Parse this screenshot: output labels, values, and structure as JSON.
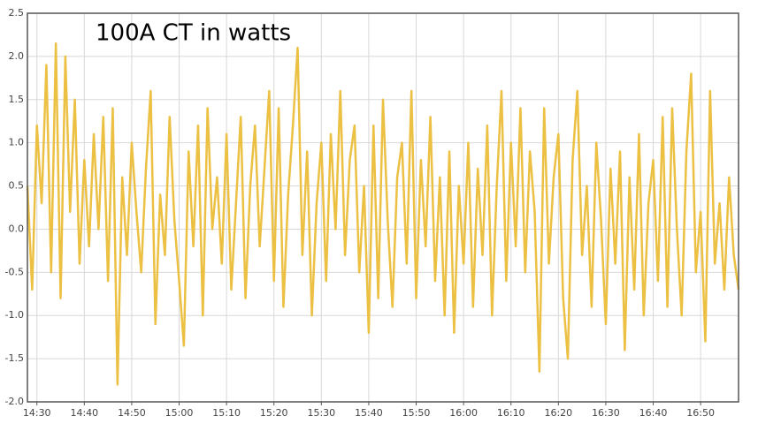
{
  "chart_data": {
    "type": "line",
    "annotation": "100A CT in watts",
    "x": [
      "14:28",
      "14:29",
      "14:30",
      "14:31",
      "14:32",
      "14:33",
      "14:34",
      "14:35",
      "14:36",
      "14:37",
      "14:38",
      "14:39",
      "14:40",
      "14:41",
      "14:42",
      "14:43",
      "14:44",
      "14:45",
      "14:46",
      "14:47",
      "14:48",
      "14:49",
      "14:50",
      "14:51",
      "14:52",
      "14:53",
      "14:54",
      "14:55",
      "14:56",
      "14:57",
      "14:58",
      "14:59",
      "15:00",
      "15:01",
      "15:02",
      "15:03",
      "15:04",
      "15:05",
      "15:06",
      "15:07",
      "15:08",
      "15:09",
      "15:10",
      "15:11",
      "15:12",
      "15:13",
      "15:14",
      "15:15",
      "15:16",
      "15:17",
      "15:18",
      "15:19",
      "15:20",
      "15:21",
      "15:22",
      "15:23",
      "15:24",
      "15:25",
      "15:26",
      "15:27",
      "15:28",
      "15:29",
      "15:30",
      "15:31",
      "15:32",
      "15:33",
      "15:34",
      "15:35",
      "15:36",
      "15:37",
      "15:38",
      "15:39",
      "15:40",
      "15:41",
      "15:42",
      "15:43",
      "15:44",
      "15:45",
      "15:46",
      "15:47",
      "15:48",
      "15:49",
      "15:50",
      "15:51",
      "15:52",
      "15:53",
      "15:54",
      "15:55",
      "15:56",
      "15:57",
      "15:58",
      "15:59",
      "16:00",
      "16:01",
      "16:02",
      "16:03",
      "16:04",
      "16:05",
      "16:06",
      "16:07",
      "16:08",
      "16:09",
      "16:10",
      "16:11",
      "16:12",
      "16:13",
      "16:14",
      "16:15",
      "16:16",
      "16:17",
      "16:18",
      "16:19",
      "16:20",
      "16:21",
      "16:22",
      "16:23",
      "16:24",
      "16:25",
      "16:26",
      "16:27",
      "16:28",
      "16:29",
      "16:30",
      "16:31",
      "16:32",
      "16:33",
      "16:34",
      "16:35",
      "16:36",
      "16:37",
      "16:38",
      "16:39",
      "16:40",
      "16:41",
      "16:42",
      "16:43",
      "16:44",
      "16:45",
      "16:46",
      "16:47",
      "16:48",
      "16:49",
      "16:50",
      "16:51",
      "16:52",
      "16:53",
      "16:54",
      "16:55",
      "16:56",
      "16:57",
      "16:58"
    ],
    "series": [
      {
        "color": "#ecc043",
        "values": [
          0.5,
          -0.7,
          1.2,
          0.3,
          1.9,
          -0.5,
          2.15,
          -0.8,
          2.0,
          0.2,
          1.5,
          -0.4,
          0.8,
          -0.2,
          1.1,
          0.0,
          1.3,
          -0.6,
          1.4,
          -1.8,
          0.6,
          -0.3,
          1.0,
          0.2,
          -0.5,
          0.7,
          1.6,
          -1.1,
          0.4,
          -0.3,
          1.3,
          0.1,
          -0.6,
          -1.35,
          0.9,
          -0.2,
          1.2,
          -1.0,
          1.4,
          0.0,
          0.6,
          -0.4,
          1.1,
          -0.7,
          0.3,
          1.3,
          -0.8,
          0.5,
          1.2,
          -0.2,
          0.7,
          1.6,
          -0.6,
          1.4,
          -0.9,
          0.4,
          1.2,
          2.1,
          -0.3,
          0.9,
          -1.0,
          0.3,
          1.0,
          -0.6,
          1.1,
          0.0,
          1.6,
          -0.3,
          0.8,
          1.2,
          -0.5,
          0.5,
          -1.2,
          1.2,
          -0.8,
          1.5,
          0.1,
          -0.9,
          0.6,
          1.0,
          -0.4,
          1.6,
          -0.8,
          0.8,
          -0.2,
          1.3,
          -0.6,
          0.6,
          -1.0,
          0.9,
          -1.2,
          0.5,
          -0.4,
          1.0,
          -0.9,
          0.7,
          -0.3,
          1.2,
          -1.0,
          0.5,
          1.6,
          -0.6,
          1.0,
          -0.2,
          1.4,
          -0.5,
          0.9,
          0.2,
          -1.65,
          1.4,
          -0.4,
          0.6,
          1.1,
          -0.8,
          -1.5,
          0.8,
          1.6,
          -0.3,
          0.5,
          -0.9,
          1.0,
          0.1,
          -1.1,
          0.7,
          -0.4,
          0.9,
          -1.4,
          0.6,
          -0.7,
          1.1,
          -1.0,
          0.3,
          0.8,
          -0.6,
          1.3,
          -0.9,
          1.4,
          0.0,
          -1.0,
          0.9,
          1.8,
          -0.5,
          0.2,
          -1.3,
          1.6,
          -0.4,
          0.3,
          -0.7,
          0.6,
          -0.3,
          -0.7
        ]
      }
    ],
    "xlim": [
      "14:28",
      "16:58"
    ],
    "xticks": [
      "14:30",
      "14:40",
      "14:50",
      "15:00",
      "15:10",
      "15:20",
      "15:30",
      "15:40",
      "15:50",
      "16:00",
      "16:10",
      "16:20",
      "16:30",
      "16:40",
      "16:50"
    ],
    "ylim": [
      -2,
      2.5
    ],
    "yticks": [
      {
        "value": -2,
        "label": "-2.0"
      },
      -1.5,
      {
        "value": -1,
        "label": "-1.0"
      },
      -0.5,
      {
        "value": 0,
        "label": "0.0"
      },
      0.5,
      {
        "value": 1,
        "label": "1.0"
      },
      1.5,
      {
        "value": 2,
        "label": "2.0"
      },
      2.5
    ],
    "grid": true
  }
}
